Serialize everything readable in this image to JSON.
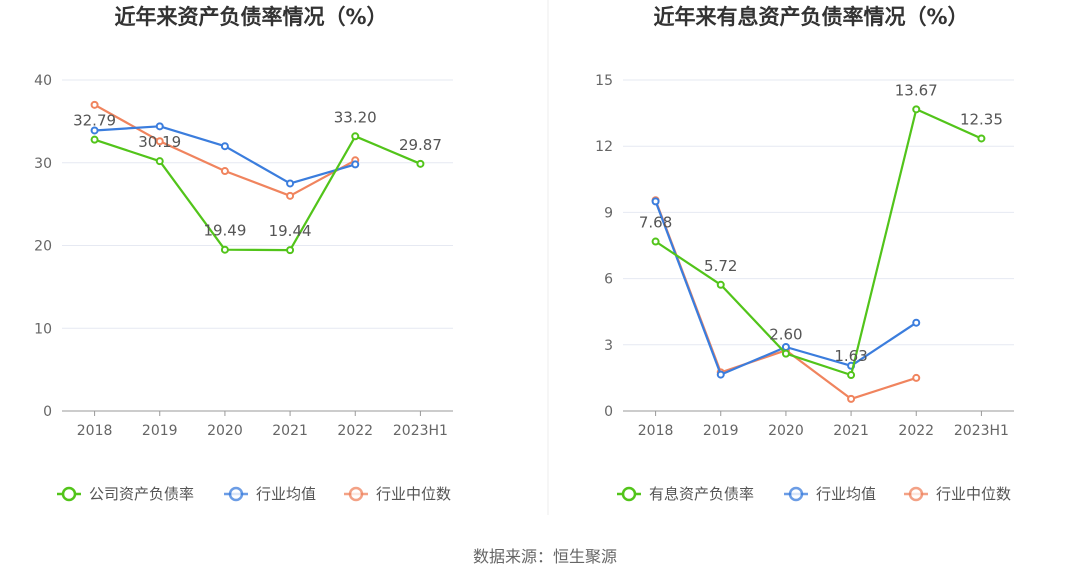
{
  "chart_data": [
    {
      "type": "line",
      "title": "近年来资产负债率情况（%）",
      "categories": [
        "2018",
        "2019",
        "2020",
        "2021",
        "2022",
        "2023H1"
      ],
      "ylim": [
        0,
        40
      ],
      "yticks": [
        0,
        10,
        20,
        30,
        40
      ],
      "series": [
        {
          "name": "公司资产负债率",
          "color": "#52c41a",
          "values": [
            32.79,
            30.19,
            19.49,
            19.44,
            33.2,
            29.87
          ],
          "labels": [
            "32.79",
            "30.19",
            "19.49",
            "19.44",
            "33.20",
            "29.87"
          ]
        },
        {
          "name": "行业均值",
          "color": "#3b7ddd",
          "values": [
            33.9,
            34.4,
            32.0,
            27.5,
            29.8,
            null
          ]
        },
        {
          "name": "行业中位数",
          "color": "#f0845e",
          "values": [
            37.0,
            32.6,
            29.0,
            26.0,
            30.3,
            null
          ]
        }
      ]
    },
    {
      "type": "line",
      "title": "近年来有息资产负债率情况（%）",
      "categories": [
        "2018",
        "2019",
        "2020",
        "2021",
        "2022",
        "2023H1"
      ],
      "ylim": [
        0,
        15
      ],
      "yticks": [
        0,
        3,
        6,
        9,
        12,
        15
      ],
      "series": [
        {
          "name": "有息资产负债率",
          "color": "#52c41a",
          "values": [
            7.68,
            5.72,
            2.6,
            1.63,
            13.67,
            12.35
          ],
          "labels": [
            "7.68",
            "5.72",
            "2.60",
            "1.63",
            "13.67",
            "12.35"
          ]
        },
        {
          "name": "行业均值",
          "color": "#3b7ddd",
          "values": [
            9.5,
            1.65,
            2.9,
            2.05,
            4.0,
            null
          ]
        },
        {
          "name": "行业中位数",
          "color": "#f0845e",
          "values": [
            9.55,
            1.75,
            2.75,
            0.55,
            1.5,
            null
          ]
        }
      ]
    }
  ],
  "footer": {
    "source": "数据来源：恒生聚源"
  }
}
